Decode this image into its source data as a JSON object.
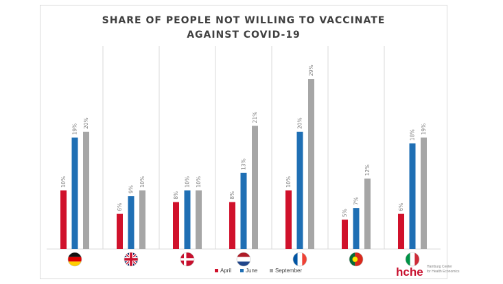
{
  "chart_data": {
    "type": "bar",
    "title_line1": "SHARE OF PEOPLE NOT WILLING TO VACCINATE",
    "title_line2": "AGAINST COVID-19",
    "categories": [
      "Germany",
      "United Kingdom",
      "Denmark",
      "Netherlands",
      "France",
      "Portugal",
      "Italy"
    ],
    "series": [
      {
        "name": "April",
        "color": "#d0112b",
        "values": [
          10,
          6,
          8,
          8,
          10,
          5,
          6
        ]
      },
      {
        "name": "June",
        "color": "#1f6fb4",
        "values": [
          19,
          9,
          10,
          13,
          20,
          7,
          18
        ]
      },
      {
        "name": "September",
        "color": "#a6a6a6",
        "values": [
          20,
          10,
          10,
          21,
          29,
          12,
          19
        ]
      }
    ],
    "value_suffix": "%",
    "ylim": [
      0,
      34
    ],
    "category_icons": [
      "germany-flag-icon",
      "uk-flag-icon",
      "denmark-flag-icon",
      "netherlands-flag-icon",
      "france-flag-icon",
      "portugal-flag-icon",
      "italy-flag-icon"
    ],
    "legend_position": "bottom"
  },
  "logo": {
    "text": "hche",
    "subtitle_line1": "Hamburg Center",
    "subtitle_line2": "for Health Economics"
  }
}
